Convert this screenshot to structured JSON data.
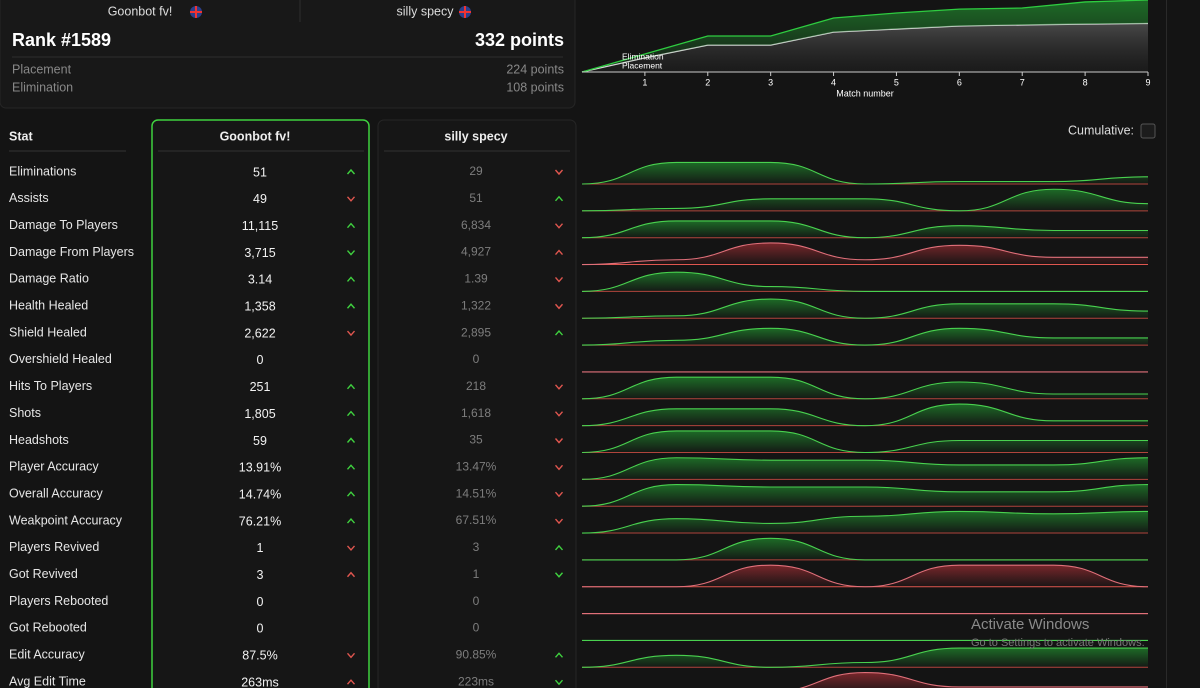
{
  "players": {
    "left": {
      "name": "Goonbot fv!"
    },
    "right": {
      "name": "silly specy"
    }
  },
  "summary": {
    "rank": "Rank #1589",
    "points": "332 points",
    "breakdown": [
      {
        "label": "Placement",
        "value": "224 points"
      },
      {
        "label": "Elimination",
        "value": "108 points"
      }
    ]
  },
  "chart_data": {
    "type": "area",
    "x": [
      0,
      1,
      2,
      3,
      4,
      5,
      6,
      7,
      8,
      9
    ],
    "xlim": [
      0,
      9
    ],
    "xticks": [
      1,
      2,
      3,
      4,
      5,
      6,
      7,
      8,
      9
    ],
    "ylim": [
      0,
      332
    ],
    "xlabel": "Match number",
    "series": [
      {
        "name": "Placement",
        "color": "#dddddd",
        "values": [
          0,
          65,
          124,
          124,
          184,
          198,
          212,
          217,
          221,
          224
        ]
      },
      {
        "name": "Elimination",
        "color": "#2ecc40",
        "values": [
          0,
          18,
          42,
          42,
          65,
          74,
          78,
          78,
          102,
          108
        ]
      }
    ]
  },
  "table": {
    "header": [
      "Stat",
      "Goonbot fv!",
      "silly specy"
    ],
    "cumulative_label": "Cumulative:",
    "rows": [
      {
        "stat": "Eliminations",
        "values": [
          "51",
          "29"
        ],
        "arrows": [
          "up-good",
          "down-bad"
        ],
        "trend": [
          0,
          0.9,
          0.9,
          0,
          0.1,
          0.1,
          0.3
        ],
        "trend_color": "green"
      },
      {
        "stat": "Assists",
        "values": [
          "49",
          "51"
        ],
        "arrows": [
          "down-bad",
          "up-good"
        ],
        "trend": [
          0,
          0.1,
          0.5,
          0.5,
          0,
          0.9,
          0.3
        ],
        "trend_color": "green"
      },
      {
        "stat": "Damage To Players",
        "values": [
          "11,115",
          "6,834"
        ],
        "arrows": [
          "up-good",
          "down-bad"
        ],
        "trend": [
          0,
          0.7,
          0.7,
          0,
          0.5,
          0.3,
          0.3
        ],
        "trend_color": "green"
      },
      {
        "stat": "Damage From Players",
        "values": [
          "3,715",
          "4,927"
        ],
        "arrows": [
          "down-good",
          "up-bad"
        ],
        "trend": [
          0,
          0.2,
          0.9,
          0.2,
          0.8,
          0.3,
          0.3
        ],
        "trend_color": "red"
      },
      {
        "stat": "Damage Ratio",
        "values": [
          "3.14",
          "1.39"
        ],
        "arrows": [
          "up-good",
          "down-bad"
        ],
        "trend": [
          0,
          0.8,
          0.2,
          0,
          0,
          0,
          0
        ],
        "trend_color": "green"
      },
      {
        "stat": "Health Healed",
        "values": [
          "1,358",
          "1,322"
        ],
        "arrows": [
          "up-good",
          "down-bad"
        ],
        "trend": [
          0,
          0.1,
          0.8,
          0,
          0.6,
          0.6,
          0.3
        ],
        "trend_color": "green"
      },
      {
        "stat": "Shield Healed",
        "values": [
          "2,622",
          "2,895"
        ],
        "arrows": [
          "down-bad",
          "up-good"
        ],
        "trend": [
          0,
          0.2,
          0.7,
          0,
          0.7,
          0.3,
          0.3
        ],
        "trend_color": "green"
      },
      {
        "stat": "Overshield Healed",
        "values": [
          "0",
          "0"
        ],
        "arrows": [
          null,
          null
        ],
        "trend": [
          0,
          0,
          0,
          0,
          0,
          0,
          0
        ],
        "trend_color": "red"
      },
      {
        "stat": "Hits To Players",
        "values": [
          "251",
          "218"
        ],
        "arrows": [
          "up-good",
          "down-bad"
        ],
        "trend": [
          0,
          0.9,
          0.9,
          0,
          0.7,
          0.2,
          0.2
        ],
        "trend_color": "green"
      },
      {
        "stat": "Shots",
        "values": [
          "1,805",
          "1,618"
        ],
        "arrows": [
          "up-good",
          "down-bad"
        ],
        "trend": [
          0,
          0.7,
          0.7,
          0,
          0.9,
          0.2,
          0.2
        ],
        "trend_color": "green"
      },
      {
        "stat": "Headshots",
        "values": [
          "59",
          "35"
        ],
        "arrows": [
          "up-good",
          "down-bad"
        ],
        "trend": [
          0,
          0.9,
          0.9,
          0,
          0.5,
          0.5,
          0.5
        ],
        "trend_color": "green"
      },
      {
        "stat": "Player Accuracy",
        "values": [
          "13.91%",
          "13.47%"
        ],
        "arrows": [
          "up-good",
          "down-bad"
        ],
        "trend": [
          0,
          0.9,
          0.8,
          0.8,
          0.6,
          0.6,
          0.9
        ],
        "trend_color": "green"
      },
      {
        "stat": "Overall Accuracy",
        "values": [
          "14.74%",
          "14.51%"
        ],
        "arrows": [
          "up-good",
          "down-bad"
        ],
        "trend": [
          0,
          0.9,
          0.8,
          0.8,
          0.6,
          0.6,
          0.9
        ],
        "trend_color": "green"
      },
      {
        "stat": "Weakpoint Accuracy",
        "values": [
          "76.21%",
          "67.51%"
        ],
        "arrows": [
          "up-good",
          "down-bad"
        ],
        "trend": [
          0,
          0.6,
          0.4,
          0.7,
          0.9,
          0.8,
          0.9
        ],
        "trend_color": "green"
      },
      {
        "stat": "Players Revived",
        "values": [
          "1",
          "3"
        ],
        "arrows": [
          "down-bad",
          "up-good"
        ],
        "trend": [
          0,
          0,
          0.9,
          0,
          0,
          0,
          0
        ],
        "trend_color": "green"
      },
      {
        "stat": "Got Revived",
        "values": [
          "3",
          "1"
        ],
        "arrows": [
          "up-bad",
          "down-good"
        ],
        "trend": [
          0,
          0,
          0.9,
          0,
          0.9,
          0.9,
          0
        ],
        "trend_color": "red"
      },
      {
        "stat": "Players Rebooted",
        "values": [
          "0",
          "0"
        ],
        "arrows": [
          null,
          null
        ],
        "trend": [
          0,
          0,
          0,
          0,
          0,
          0,
          0
        ],
        "trend_color": "red"
      },
      {
        "stat": "Got Rebooted",
        "values": [
          "0",
          "0"
        ],
        "arrows": [
          null,
          null
        ],
        "trend": [
          0,
          0,
          0,
          0,
          0,
          0,
          0
        ],
        "trend_color": "green"
      },
      {
        "stat": "Edit Accuracy",
        "values": [
          "87.5%",
          "90.85%"
        ],
        "arrows": [
          "down-bad",
          "up-good"
        ],
        "trend": [
          0,
          0.5,
          0,
          0.2,
          0.8,
          0.8,
          0.8
        ],
        "trend_color": "green"
      },
      {
        "stat": "Avg Edit Time",
        "values": [
          "263ms",
          "223ms"
        ],
        "arrows": [
          "up-bad",
          "down-good"
        ],
        "trend": [
          0,
          0,
          0.1,
          0.9,
          0.3,
          0.3,
          0.3
        ],
        "trend_color": "red"
      }
    ]
  },
  "watermark": {
    "title": "Activate Windows",
    "subtitle": "Go to Settings to activate Windows."
  }
}
